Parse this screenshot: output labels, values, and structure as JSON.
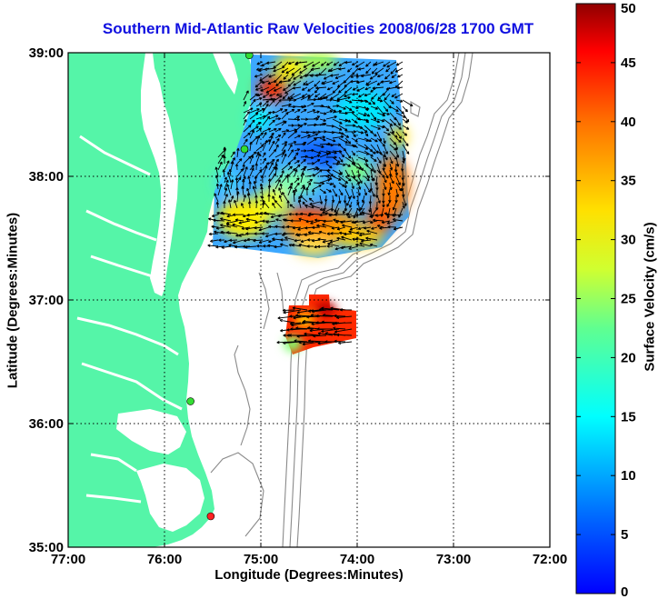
{
  "map": {
    "title": "Southern Mid-Atlantic Raw Velocities 2008/06/28 1700 GMT",
    "xlabel": "Longitude (Degrees:Minutes)",
    "ylabel": "Latitude (Degrees:Minutes)",
    "x_ticks": [
      "77:00",
      "76:00",
      "75:00",
      "74:00",
      "73:00",
      "72:00"
    ],
    "y_ticks": [
      "39:00",
      "38:00",
      "37:00",
      "36:00",
      "35:00"
    ],
    "lon_range": [
      -77,
      -72
    ],
    "lat_range": [
      35,
      39
    ],
    "grid": "dotted",
    "land_color": "#55f5a8",
    "stations": [
      {
        "lon": -75.12,
        "lat": 38.98,
        "color": "#33dd33"
      },
      {
        "lon": -75.17,
        "lat": 38.22,
        "color": "#33dd33"
      },
      {
        "lon": -75.73,
        "lat": 36.18,
        "color": "#33dd33"
      },
      {
        "lon": -75.52,
        "lat": 35.25,
        "color": "#ff2222"
      }
    ]
  },
  "colorbar": {
    "label": "Surface Velocity (cm/s)",
    "ticks": [
      "0",
      "5",
      "10",
      "15",
      "20",
      "25",
      "30",
      "35",
      "40",
      "45",
      "50"
    ],
    "range": [
      0,
      50
    ],
    "colormap": "jet"
  }
}
